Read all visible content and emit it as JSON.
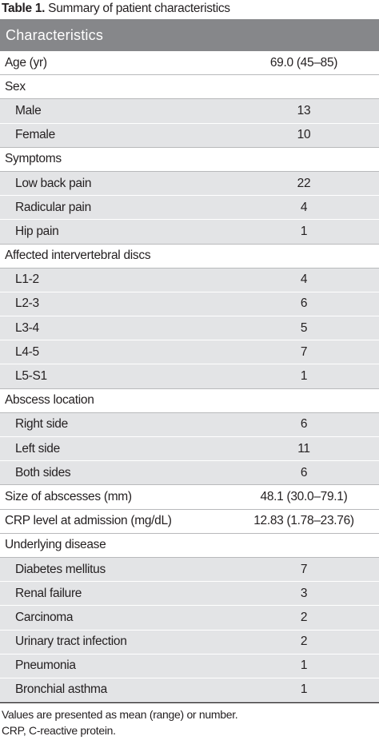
{
  "caption": {
    "label": "Table 1.",
    "text": " Summary of patient characteristics"
  },
  "header": "Characteristics",
  "rows": [
    {
      "label": "Age (yr)",
      "value": "69.0 (45–85)",
      "kind": "main"
    },
    {
      "label": "Sex",
      "value": "",
      "kind": "main"
    },
    {
      "label": "Male",
      "value": "13",
      "kind": "sub"
    },
    {
      "label": "Female",
      "value": "10",
      "kind": "sub"
    },
    {
      "label": "Symptoms",
      "value": "",
      "kind": "main"
    },
    {
      "label": "Low back pain",
      "value": "22",
      "kind": "sub"
    },
    {
      "label": "Radicular pain",
      "value": "4",
      "kind": "sub"
    },
    {
      "label": "Hip pain",
      "value": "1",
      "kind": "sub"
    },
    {
      "label": "Affected intervertebral discs",
      "value": "",
      "kind": "main"
    },
    {
      "label": "L1-2",
      "value": "4",
      "kind": "sub"
    },
    {
      "label": "L2-3",
      "value": "6",
      "kind": "sub"
    },
    {
      "label": "L3-4",
      "value": "5",
      "kind": "sub"
    },
    {
      "label": "L4-5",
      "value": "7",
      "kind": "sub"
    },
    {
      "label": "L5-S1",
      "value": "1",
      "kind": "sub"
    },
    {
      "label": "Abscess location",
      "value": "",
      "kind": "main"
    },
    {
      "label": "Right side",
      "value": "6",
      "kind": "sub"
    },
    {
      "label": "Left side",
      "value": "11",
      "kind": "sub"
    },
    {
      "label": "Both sides",
      "value": "6",
      "kind": "sub"
    },
    {
      "label": "Size of abscesses (mm)",
      "value": "48.1 (30.0–79.1)",
      "kind": "main"
    },
    {
      "label": "CRP level at admission (mg/dL)",
      "value": "12.83 (1.78–23.76)",
      "kind": "main"
    },
    {
      "label": "Underlying disease",
      "value": "",
      "kind": "main"
    },
    {
      "label": "Diabetes mellitus",
      "value": "7",
      "kind": "sub"
    },
    {
      "label": "Renal failure",
      "value": "3",
      "kind": "sub"
    },
    {
      "label": "Carcinoma",
      "value": "2",
      "kind": "sub"
    },
    {
      "label": "Urinary tract infection",
      "value": "2",
      "kind": "sub"
    },
    {
      "label": "Pneumonia",
      "value": "1",
      "kind": "sub"
    },
    {
      "label": "Bronchial asthma",
      "value": "1",
      "kind": "sub"
    }
  ],
  "notes": [
    "Values are presented as mean (range) or number.",
    "CRP, C-reactive protein."
  ]
}
